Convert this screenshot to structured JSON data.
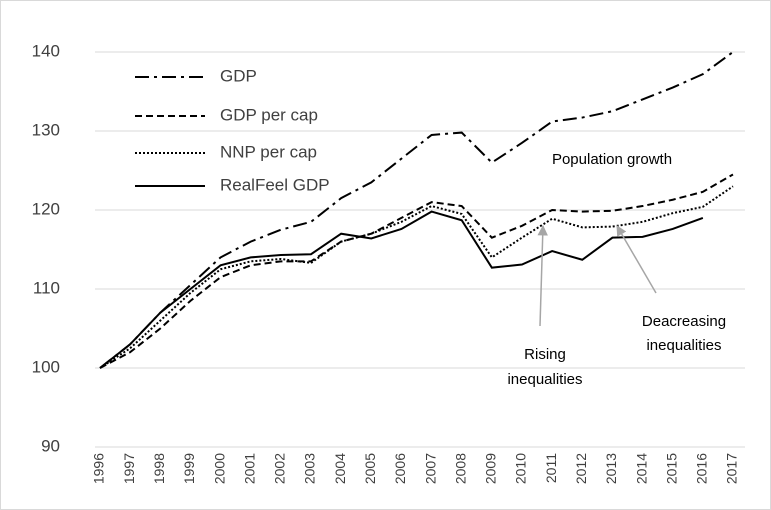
{
  "chart_data": {
    "type": "line",
    "x": [
      1996,
      1997,
      1998,
      1999,
      2000,
      2001,
      2002,
      2003,
      2004,
      2005,
      2006,
      2007,
      2008,
      2009,
      2010,
      2011,
      2012,
      2013,
      2014,
      2015,
      2016,
      2017
    ],
    "xlim": [
      1996,
      2017
    ],
    "ylim": [
      90,
      140
    ],
    "yticks": [
      90,
      100,
      110,
      120,
      130,
      140
    ],
    "grid": true,
    "legend": "top-left",
    "series": [
      {
        "name": "GDP",
        "color": "#000000",
        "dash": "dash-dot",
        "values": [
          100,
          103,
          107,
          110.5,
          114,
          116,
          117.5,
          118.5,
          121.5,
          123.5,
          126.5,
          129.5,
          129.8,
          126,
          128.5,
          131.2,
          131.7,
          132.5,
          134,
          135.5,
          137.2,
          140
        ]
      },
      {
        "name": "GDP per cap",
        "color": "#000000",
        "dash": "dashed",
        "values": [
          100,
          102,
          105,
          108.5,
          111.5,
          113,
          113.5,
          113.5,
          116,
          117,
          119,
          121,
          120.5,
          116.5,
          118,
          120,
          119.8,
          119.9,
          120.5,
          121.3,
          122.3,
          124.5
        ]
      },
      {
        "name": "NNP per cap",
        "color": "#000000",
        "dash": "dotted",
        "values": [
          100,
          102.5,
          106,
          109.5,
          112.5,
          113.5,
          113.8,
          113.3,
          116,
          117,
          118.5,
          120.5,
          119.5,
          114,
          116.5,
          118.9,
          117.8,
          117.9,
          118.5,
          119.6,
          120.4,
          123
        ]
      },
      {
        "name": "RealFeel GDP",
        "color": "#000000",
        "dash": "solid",
        "values": [
          100,
          103,
          107,
          110,
          113,
          114,
          114.3,
          114.4,
          117,
          116.4,
          117.6,
          119.8,
          118.7,
          112.7,
          113.1,
          114.8,
          113.7,
          116.5,
          116.6,
          117.6,
          119,
          null
        ]
      }
    ],
    "annotations": [
      {
        "lines": [
          "Population growth"
        ]
      },
      {
        "lines": [
          "Rising",
          "inequalities"
        ],
        "arrow_color": "#a6a6a6"
      },
      {
        "lines": [
          "Deacreasing",
          "inequalities"
        ],
        "arrow_color": "#a6a6a6"
      }
    ]
  }
}
